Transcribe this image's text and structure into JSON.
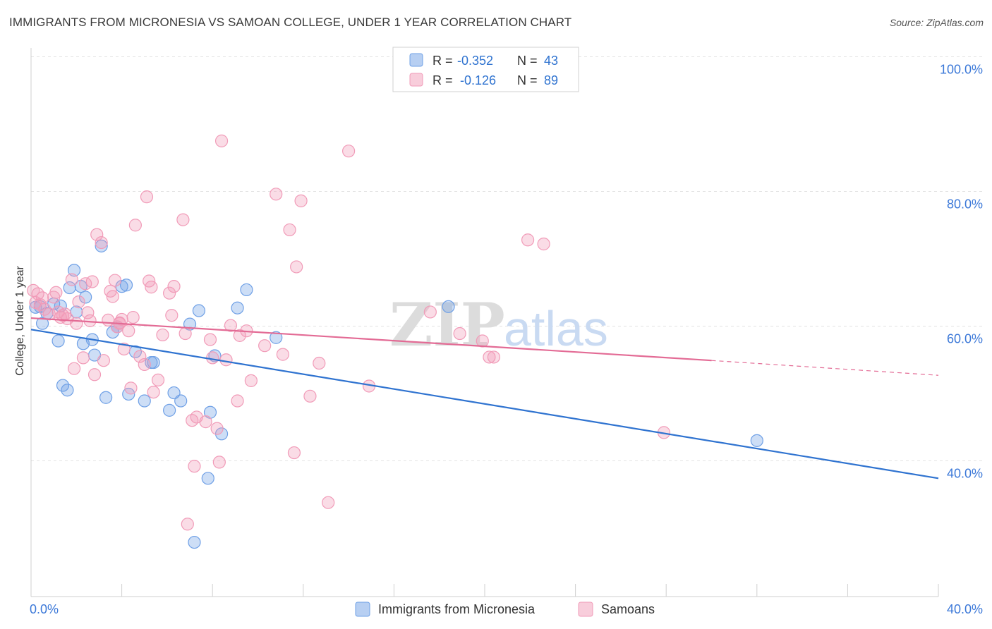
{
  "title": "IMMIGRANTS FROM MICRONESIA VS SAMOAN COLLEGE, UNDER 1 YEAR CORRELATION CHART",
  "source": "Source: ZipAtlas.com",
  "watermark": {
    "zip": "ZIP",
    "atlas": "atlas"
  },
  "stats": [
    {
      "r_label": "R = ",
      "r": "-0.352",
      "n_label": "N = ",
      "n": "43",
      "color": "#6fa0e6"
    },
    {
      "r_label": "R = ",
      "r": "-0.126",
      "n_label": "N = ",
      "n": "89",
      "color": "#f19bb8"
    }
  ],
  "chart_data": {
    "type": "scatter",
    "xlabel": "",
    "ylabel": "College, Under 1 year",
    "xlim": [
      0,
      40
    ],
    "ylim": [
      20,
      104
    ],
    "x_tick_labels": [
      {
        "value": 0,
        "label": "0.0%"
      },
      {
        "value": 40,
        "label": "40.0%"
      }
    ],
    "y_tick_labels": [
      {
        "value": 40,
        "label": "40.0%"
      },
      {
        "value": 60,
        "label": "60.0%"
      },
      {
        "value": 80,
        "label": "80.0%"
      },
      {
        "value": 100,
        "label": "100.0%"
      }
    ],
    "legend_position": "bottom",
    "grid": true,
    "series": [
      {
        "name": "Immigrants from Micronesia",
        "color": "#6fa0e6",
        "line_color": "#2f73d0",
        "trend": {
          "x0": 0,
          "y0": 59.5,
          "x1": 40,
          "y1": 37.4
        },
        "points": [
          [
            0.2,
            62.8
          ],
          [
            0.5,
            60.4
          ],
          [
            0.7,
            61.9
          ],
          [
            1.0,
            63.3
          ],
          [
            1.2,
            57.8
          ],
          [
            1.4,
            51.2
          ],
          [
            1.6,
            50.5
          ],
          [
            1.7,
            65.7
          ],
          [
            1.9,
            68.3
          ],
          [
            2.2,
            65.9
          ],
          [
            2.4,
            64.3
          ],
          [
            2.3,
            57.4
          ],
          [
            2.7,
            58.0
          ],
          [
            2.8,
            55.7
          ],
          [
            3.1,
            71.9
          ],
          [
            3.3,
            49.4
          ],
          [
            3.6,
            59.1
          ],
          [
            3.8,
            59.9
          ],
          [
            4.0,
            65.9
          ],
          [
            4.2,
            66.1
          ],
          [
            4.3,
            49.9
          ],
          [
            4.6,
            56.2
          ],
          [
            5.0,
            48.9
          ],
          [
            5.3,
            54.6
          ],
          [
            5.4,
            54.6
          ],
          [
            6.1,
            47.5
          ],
          [
            6.3,
            50.1
          ],
          [
            6.6,
            48.9
          ],
          [
            7.0,
            60.3
          ],
          [
            7.4,
            62.3
          ],
          [
            7.8,
            37.4
          ],
          [
            7.9,
            47.2
          ],
          [
            8.1,
            55.6
          ],
          [
            8.4,
            44.0
          ],
          [
            9.1,
            62.7
          ],
          [
            9.5,
            65.4
          ],
          [
            10.8,
            58.3
          ],
          [
            18.4,
            62.9
          ],
          [
            32.0,
            43.0
          ],
          [
            7.2,
            27.9
          ],
          [
            2.0,
            62.1
          ],
          [
            1.3,
            63.0
          ],
          [
            0.4,
            62.9
          ]
        ]
      },
      {
        "name": "Samoans",
        "color": "#f19bb8",
        "line_color": "#e36b95",
        "trend": {
          "x0": 0,
          "y0": 61.2,
          "x1": 30,
          "y1": 54.9
        },
        "trend_ext": {
          "x0": 30,
          "y0": 54.9,
          "x1": 40,
          "y1": 52.7
        },
        "points": [
          [
            0.1,
            65.3
          ],
          [
            0.3,
            64.8
          ],
          [
            0.4,
            63.2
          ],
          [
            0.6,
            62.5
          ],
          [
            0.8,
            61.8
          ],
          [
            1.0,
            64.3
          ],
          [
            1.1,
            65.0
          ],
          [
            1.2,
            62.1
          ],
          [
            1.4,
            61.6
          ],
          [
            1.5,
            61.8
          ],
          [
            1.6,
            61.1
          ],
          [
            1.8,
            66.9
          ],
          [
            1.9,
            53.7
          ],
          [
            2.0,
            60.4
          ],
          [
            2.1,
            63.6
          ],
          [
            2.3,
            55.3
          ],
          [
            2.4,
            66.3
          ],
          [
            2.6,
            60.8
          ],
          [
            2.7,
            66.6
          ],
          [
            2.8,
            52.8
          ],
          [
            2.9,
            73.6
          ],
          [
            3.1,
            72.4
          ],
          [
            3.2,
            54.9
          ],
          [
            3.4,
            60.9
          ],
          [
            3.5,
            65.2
          ],
          [
            3.6,
            64.4
          ],
          [
            3.7,
            66.8
          ],
          [
            3.8,
            59.9
          ],
          [
            3.9,
            60.4
          ],
          [
            4.0,
            61.0
          ],
          [
            4.1,
            56.6
          ],
          [
            4.3,
            59.3
          ],
          [
            4.4,
            50.8
          ],
          [
            4.5,
            61.3
          ],
          [
            4.6,
            75.0
          ],
          [
            4.8,
            55.5
          ],
          [
            5.0,
            54.3
          ],
          [
            5.1,
            79.2
          ],
          [
            5.2,
            66.7
          ],
          [
            5.3,
            65.8
          ],
          [
            5.4,
            50.2
          ],
          [
            5.6,
            52.0
          ],
          [
            5.8,
            58.7
          ],
          [
            6.1,
            64.9
          ],
          [
            6.2,
            61.6
          ],
          [
            6.3,
            65.9
          ],
          [
            6.7,
            75.8
          ],
          [
            6.8,
            58.9
          ],
          [
            6.9,
            30.6
          ],
          [
            7.1,
            46.0
          ],
          [
            7.2,
            39.2
          ],
          [
            7.3,
            46.5
          ],
          [
            7.7,
            45.8
          ],
          [
            7.9,
            58.0
          ],
          [
            8.0,
            55.3
          ],
          [
            8.2,
            44.8
          ],
          [
            8.3,
            39.8
          ],
          [
            8.4,
            87.5
          ],
          [
            8.8,
            60.1
          ],
          [
            9.1,
            48.9
          ],
          [
            9.2,
            58.6
          ],
          [
            9.5,
            59.3
          ],
          [
            9.7,
            51.9
          ],
          [
            10.3,
            57.1
          ],
          [
            10.8,
            79.6
          ],
          [
            11.1,
            55.8
          ],
          [
            11.4,
            74.3
          ],
          [
            11.6,
            41.2
          ],
          [
            11.7,
            68.8
          ],
          [
            11.9,
            78.6
          ],
          [
            12.3,
            49.6
          ],
          [
            12.7,
            54.5
          ],
          [
            13.1,
            33.8
          ],
          [
            14.0,
            86.0
          ],
          [
            14.9,
            51.1
          ],
          [
            17.6,
            62.1
          ],
          [
            18.9,
            58.9
          ],
          [
            19.9,
            57.8
          ],
          [
            20.2,
            55.4
          ],
          [
            20.4,
            55.4
          ],
          [
            21.9,
            72.8
          ],
          [
            22.6,
            72.2
          ],
          [
            27.9,
            44.2
          ],
          [
            0.2,
            63.5
          ],
          [
            0.5,
            64.2
          ],
          [
            1.3,
            61.3
          ],
          [
            2.5,
            62.0
          ],
          [
            3.9,
            60.5
          ],
          [
            8.6,
            55.0
          ]
        ]
      }
    ]
  }
}
